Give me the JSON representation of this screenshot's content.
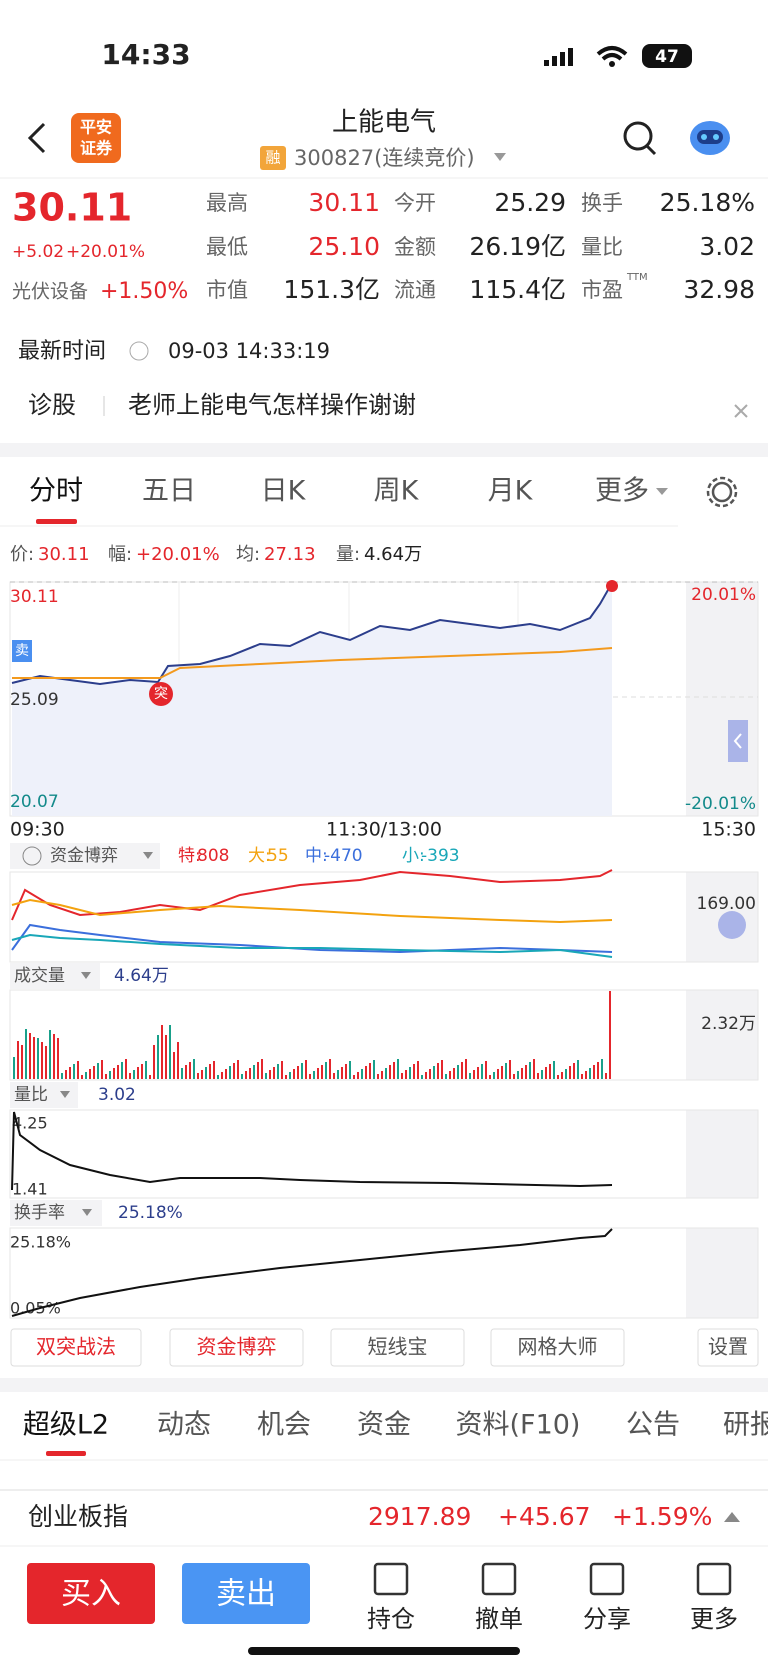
{
  "status": {
    "time": "14:33",
    "battery": "47"
  },
  "header": {
    "logo": [
      "平安",
      "证券"
    ],
    "title": "上能电气",
    "badge": "融",
    "code": "300827(连续竞价)"
  },
  "quote": {
    "price": "30.11",
    "change": "+5.02",
    "change_pct": "+20.01%",
    "sector": "光伏设备",
    "sector_change": "+1.50%"
  },
  "stats": [
    {
      "label": "最高",
      "value": "30.11"
    },
    {
      "label": "今开",
      "value": "25.29"
    },
    {
      "label": "换手",
      "value": "25.18%"
    },
    {
      "label": "最低",
      "value": "25.10"
    },
    {
      "label": "金额",
      "value": "26.19亿"
    },
    {
      "label": "量比",
      "value": "3.02"
    },
    {
      "label": "市值",
      "value": "151.3亿"
    },
    {
      "label": "流通",
      "value": "115.4亿"
    },
    {
      "label": "市盈",
      "sup": "TTM",
      "value": "32.98"
    }
  ],
  "update": {
    "label": "最新时间",
    "time": "09-03 14:33:19"
  },
  "diagnosis": {
    "label": "诊股",
    "text": "老师上能电气怎样操作谢谢"
  },
  "tabs": [
    "分时",
    "五日",
    "日K",
    "周K",
    "月K",
    "更多"
  ],
  "info": [
    {
      "label": "价:",
      "value": "30.11"
    },
    {
      "label": "幅:",
      "value": "+20.01%"
    },
    {
      "label": "均:",
      "value": "27.13"
    },
    {
      "label": "量:",
      "value": "4.64万"
    }
  ],
  "price_chart": {
    "high": "30.11",
    "base": "25.09",
    "low": "20.07",
    "pct_high": "20.01%",
    "pct_low": "-20.01%",
    "times": [
      "09:30",
      "11:30/13:00",
      "15:30"
    ],
    "sell_marker": "卖",
    "break_marker": "突"
  },
  "fund_panel": {
    "title": "资金博弈",
    "items": [
      {
        "label": "特:",
        "value": "808"
      },
      {
        "label": "大:",
        "value": "55"
      },
      {
        "label": "中:",
        "value": "-470"
      },
      {
        "label": "小:",
        "value": "-393"
      }
    ],
    "scale": "169.00"
  },
  "volume_panel": {
    "title": "成交量",
    "value": "4.64万",
    "scale": "2.32万"
  },
  "ratio_panel": {
    "title": "量比",
    "value": "3.02",
    "high": "4.25",
    "low": "1.41"
  },
  "turnover_panel": {
    "title": "换手率",
    "value": "25.18%",
    "high": "25.18%",
    "low": "0.05%"
  },
  "buttons": [
    "双突战法",
    "资金博弈",
    "短线宝",
    "网格大师",
    "设置"
  ],
  "bottom_tabs": [
    "超级L2",
    "动态",
    "机会",
    "资金",
    "资料(F10)",
    "公告",
    "研报"
  ],
  "index": {
    "name": "创业板指",
    "value": "2917.89",
    "change": "+45.67",
    "change_pct": "+1.59%"
  },
  "actions": [
    "买入",
    "卖出",
    "持仓",
    "撤单",
    "分享",
    "更多"
  ]
}
